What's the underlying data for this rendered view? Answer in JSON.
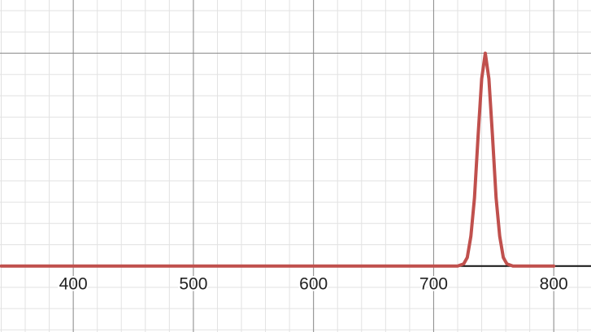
{
  "chart_data": {
    "type": "line",
    "x": [
      340,
      700,
      720,
      725,
      728,
      731,
      734,
      737,
      740,
      743,
      746,
      749,
      752,
      755,
      758,
      761,
      766,
      800
    ],
    "series": [
      {
        "color": "#c0504d",
        "values": [
          0,
          0,
          0,
          0.01,
          0.04,
          0.14,
          0.32,
          0.61,
          0.88,
          1,
          0.88,
          0.61,
          0.32,
          0.14,
          0.04,
          0.01,
          0,
          0
        ]
      }
    ],
    "xlim": [
      339,
      831
    ],
    "ylim": [
      -0.31,
      1.25
    ],
    "xticks": [
      400,
      500,
      600,
      700,
      800
    ],
    "yticks": [
      0,
      1
    ],
    "grid": true
  }
}
